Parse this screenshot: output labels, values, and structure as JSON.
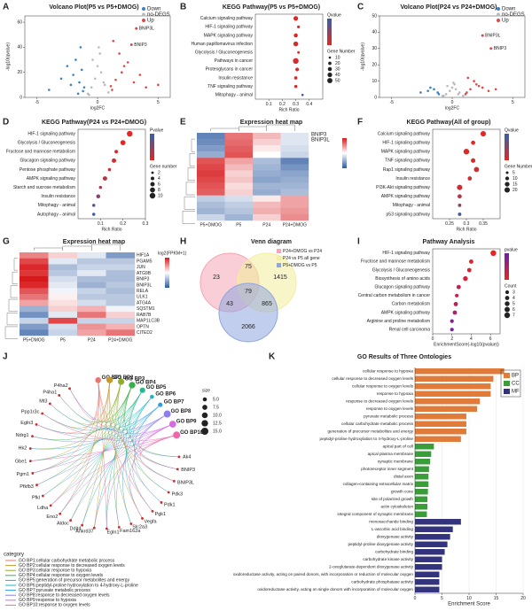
{
  "chart_data": [
    {
      "label": "A",
      "type": "scatter",
      "title": "Volcano Plot(P5 vs P5+DMOG)",
      "xlabel": "log2FC",
      "ylabel": "-log10(qvalue)",
      "xlim": [
        -6,
        6
      ],
      "xticks": [
        -5,
        0,
        5
      ],
      "ylim": [
        0,
        65
      ],
      "yticks": [
        0,
        20,
        40,
        60
      ],
      "series": [
        {
          "name": "Down",
          "color": "#3b7fc4",
          "x": [
            -1.2,
            -1.5,
            -2,
            -2.5,
            -1.1,
            -1.8,
            -3,
            -1.4,
            -2.2,
            -1.3,
            -4,
            -1.6
          ],
          "values": [
            5,
            12,
            18,
            25,
            8,
            30,
            15,
            40,
            10,
            22,
            6,
            3
          ]
        },
        {
          "name": "no-DEGS",
          "color": "#bbbbbb",
          "x": [
            -0.8,
            -0.5,
            -0.2,
            0,
            0.3,
            0.6,
            0.9,
            -0.4,
            0.2,
            0.5,
            -0.7,
            0.1
          ],
          "values": [
            3,
            8,
            15,
            25,
            20,
            10,
            4,
            30,
            35,
            12,
            2,
            40
          ]
        },
        {
          "name": "Up",
          "color": "#e04848",
          "x": [
            1.2,
            1.5,
            2,
            2.5,
            3,
            1.1,
            1.8,
            3.5,
            4,
            2.2,
            1.3,
            5
          ],
          "values": [
            6,
            14,
            20,
            28,
            12,
            9,
            35,
            18,
            8,
            25,
            45,
            10
          ]
        }
      ],
      "annotations": [
        {
          "text": "BNIP3L",
          "x": 3.2,
          "y": 55
        },
        {
          "text": "BNIP3",
          "x": 2.8,
          "y": 42
        }
      ]
    },
    {
      "label": "B",
      "type": "dot",
      "title": "KEGG Pathway(P5 vs P5+DMOG)",
      "xlabel": "Rich Ratio",
      "xlim": [
        0,
        0.5
      ],
      "xticks": [
        0.1,
        0.2,
        0.3,
        0.4
      ],
      "categories": [
        "Calcium signaling pathway",
        "HIF-1 signaling pathway",
        "MAPK signaling pathway",
        "Human papillomavirus infection",
        "Glycolysis / Gluconeogenesis",
        "Pathways in cancer",
        "Proteoglycans in cancer",
        "Insulin resistance",
        "TNF signaling pathway",
        "Mitophagy - animal"
      ],
      "values": [
        0.3,
        0.32,
        0.3,
        0.3,
        0.32,
        0.3,
        0.31,
        0.3,
        0.3,
        0.35
      ],
      "sizes": [
        40,
        15,
        30,
        45,
        12,
        60,
        25,
        20,
        18,
        10
      ],
      "pvalues": [
        0.001,
        0.001,
        0.002,
        0.003,
        0.002,
        0.004,
        0.003,
        0.005,
        0.004,
        0.035
      ],
      "clim": [
        0,
        0.04
      ],
      "colors": [
        "#e8251f",
        "#2d62b0"
      ],
      "colorbar_title": "Qvalue",
      "size_title": "Gene Number",
      "size_ticks": [
        10,
        20,
        30,
        40,
        50
      ]
    },
    {
      "label": "C",
      "type": "scatter",
      "title": "Volcano Plot(P24 vs P24+DMOG)",
      "xlabel": "log2FC",
      "ylabel": "-log10(qvalue)",
      "xlim": [
        -6,
        6
      ],
      "xticks": [
        -5,
        0,
        5
      ],
      "ylim": [
        0,
        50
      ],
      "yticks": [
        0,
        10,
        20,
        30,
        40,
        50
      ],
      "series": [
        {
          "name": "Down",
          "color": "#3b7fc4",
          "x": [
            -1.2,
            -1.5,
            -2,
            -1.1,
            -1.8,
            -2.6
          ],
          "values": [
            3,
            5,
            4,
            2,
            6,
            3
          ]
        },
        {
          "name": "no-DEGS",
          "color": "#bbbbbb",
          "x": [
            -0.8,
            -0.5,
            -0.2,
            0,
            0.3,
            0.6,
            0.9,
            -0.4,
            0.2,
            0.5,
            -0.7,
            0.1
          ],
          "values": [
            1,
            2,
            4,
            6,
            5,
            3,
            1,
            7,
            8,
            2,
            1,
            9
          ]
        },
        {
          "name": "Up",
          "color": "#e04848",
          "x": [
            1.2,
            1.5,
            2,
            2.5,
            3,
            1.1,
            1.8,
            3.6,
            2.2,
            1.3
          ],
          "values": [
            3,
            5,
            8,
            6,
            4,
            2,
            10,
            5,
            7,
            12
          ]
        }
      ],
      "annotations": [
        {
          "text": "BNIP3L",
          "x": 2.5,
          "y": 38
        },
        {
          "text": "BNIP3",
          "x": 3.2,
          "y": 30
        }
      ]
    },
    {
      "label": "D",
      "type": "dot",
      "title": "KEGG Pathway(P24 vs P24+DMOG)",
      "xlabel": "Rich Ratio",
      "xlim": [
        0,
        0.3
      ],
      "xticks": [
        0.1,
        0.2,
        0.3
      ],
      "categories": [
        "HIF-1 signaling pathway",
        "Glycolysis / Gluconeogenesis",
        "Fructose and mannose metabolism",
        "Glucagon signaling pathway",
        "Pentose phosphate pathway",
        "AMPK signaling pathway",
        "Starch and sucrose metabolism",
        "Insulin resistance",
        "Mitophagy - animal",
        "Autophagy - animal"
      ],
      "values": [
        0.23,
        0.2,
        0.17,
        0.16,
        0.14,
        0.12,
        0.1,
        0.09,
        0.07,
        0.07
      ],
      "sizes": [
        10,
        8,
        4,
        6,
        3,
        6,
        3,
        5,
        3,
        3
      ],
      "pvalues": [
        0.001,
        0.002,
        0.004,
        0.005,
        0.008,
        0.01,
        0.015,
        0.02,
        0.03,
        0.035
      ],
      "clim": [
        0,
        0.04
      ],
      "colors": [
        "#e8251f",
        "#2d62b0"
      ],
      "colorbar_title": "Pvalue",
      "size_title": "Gene number",
      "size_ticks": [
        2,
        4,
        6,
        8,
        10
      ]
    },
    {
      "label": "E",
      "type": "heatmap",
      "title": "Expression heat map",
      "columns": [
        "P5+DMOG",
        "P5",
        "P24",
        "P24+DMOG"
      ],
      "values": [
        [
          -1.5,
          1.2,
          0.6,
          -0.3
        ],
        [
          -1.4,
          1.3,
          0.4,
          -0.3
        ],
        [
          -1.2,
          1.4,
          0.2,
          -0.4
        ],
        [
          -1.0,
          1.5,
          0,
          -0.5
        ],
        [
          1.5,
          0.8,
          -0.8,
          -1.5
        ],
        [
          1.6,
          0.6,
          -0.9,
          -1.3
        ],
        [
          1.7,
          0.4,
          -1,
          -1.1
        ],
        [
          1.6,
          0.5,
          -1.1,
          -1.0
        ],
        [
          1.5,
          0.3,
          -0.9,
          -0.9
        ],
        [
          1.4,
          0.4,
          -1,
          -0.8
        ],
        [
          -0.6,
          -0.4,
          0.2,
          0.8
        ],
        [
          -0.8,
          -0.6,
          0.6,
          0.8
        ],
        [
          -0.9,
          -0.7,
          0.7,
          0.9
        ],
        [
          -0.5,
          -0.9,
          0.4,
          1.0
        ]
      ],
      "clim": [
        -2,
        2
      ],
      "colors": [
        "#2c5aa0",
        "#ffffff",
        "#d7191c"
      ],
      "annotations": [
        "BNIP3",
        "BNIP3L"
      ]
    },
    {
      "label": "F",
      "type": "dot",
      "title": "KEGG Pathway(All of group)",
      "xlabel": "Rich Ratio",
      "xlim": [
        0.2,
        0.4
      ],
      "xticks": [
        0.25,
        0.3,
        0.35
      ],
      "categories": [
        "Calcium signaling pathway",
        "HIF-1 signaling pathway",
        "MAPK signaling pathway",
        "TNF signaling pathway",
        "Rap1 signaling pathway",
        "Insulin resistance",
        "PI3K-Akt signaling pathway",
        "AMPK signaling pathway",
        "Mitophagy - animal",
        "p53 signaling pathway"
      ],
      "values": [
        0.35,
        0.32,
        0.3,
        0.32,
        0.33,
        0.31,
        0.28,
        0.28,
        0.28,
        0.28
      ],
      "sizes": [
        20,
        12,
        22,
        14,
        18,
        12,
        20,
        12,
        8,
        8
      ],
      "pvalues": [
        0.001,
        0.002,
        0.002,
        0.003,
        0.004,
        0.005,
        0.006,
        0.01,
        0.02,
        0.035
      ],
      "clim": [
        0,
        0.04
      ],
      "colors": [
        "#e8251f",
        "#2d62b0"
      ],
      "colorbar_title": "Qvalue",
      "size_title": "Gene Number",
      "size_ticks": [
        5,
        10,
        15,
        20
      ]
    },
    {
      "label": "G",
      "type": "heatmap",
      "title": "Expression heat map",
      "columns": [
        "P5+DMOG",
        "P5",
        "P24",
        "P24+DMOG"
      ],
      "rows": [
        "HIF1A",
        "PGAM5",
        "JUN",
        "ATG9B",
        "BNIP3",
        "BNIP3L",
        "RELA",
        "ULK1",
        "ATG4A",
        "SQSTM1",
        "RAB7B",
        "MAP1LC3B",
        "OPTN",
        "CITED2"
      ],
      "values": [
        [
          0.8,
          0.3,
          -0.2,
          -0.9
        ],
        [
          1.2,
          -0.2,
          -0.5,
          -0.5
        ],
        [
          1.4,
          -0.6,
          -0.4,
          -0.4
        ],
        [
          1.3,
          -0.5,
          -0.2,
          -0.6
        ],
        [
          1.5,
          -0.3,
          -0.6,
          -0.6
        ],
        [
          1.4,
          -0.2,
          -0.7,
          -0.5
        ],
        [
          1.1,
          -0.1,
          -0.4,
          -0.6
        ],
        [
          0.9,
          0.1,
          -0.5,
          -0.5
        ],
        [
          0.6,
          0.2,
          -0.3,
          -0.5
        ],
        [
          -0.7,
          0.3,
          0.5,
          -0.1
        ],
        [
          -1.0,
          -0.2,
          0.9,
          0.3
        ],
        [
          -0.4,
          1.2,
          -0.4,
          -0.4
        ],
        [
          -0.9,
          -0.3,
          0.7,
          0.5
        ],
        [
          -1.1,
          -0.4,
          0.6,
          0.9
        ]
      ],
      "clim": [
        -1.5,
        1.5
      ],
      "colors": [
        "#2c5aa0",
        "#ffffff",
        "#d7191c"
      ],
      "colorbar_title": "log2(FPKM+1)"
    },
    {
      "label": "H",
      "type": "venn",
      "title": "Venn diagram",
      "sets": [
        {
          "name": "P24+DMOG vs P24",
          "color": "#f4a6b4"
        },
        {
          "name": "P24 vs P5 all gene",
          "color": "#f3ef9a"
        },
        {
          "name": "P5+DMOG vs P5",
          "color": "#8fa6e0"
        }
      ],
      "values": [
        23,
        75,
        1415,
        79,
        43,
        865,
        2066
      ]
    },
    {
      "label": "I",
      "type": "dot",
      "title": "Pathway Analysis",
      "xlabel": "EnrichmentScore(-log10(pvalue))",
      "xlim": [
        0,
        7
      ],
      "xticks": [
        0,
        2,
        4,
        6
      ],
      "categories": [
        "HIF-1 signaling pathway",
        "Fructose and mannose metabolism",
        "Glycolysis / Gluconeogenesis",
        "Biosynthesis of amino acids",
        "Glucagon signaling pathway",
        "Central carbon metabolism in cancer",
        "Carbon metabolism",
        "AMPK signaling pathway",
        "Arginine and proline metabolism",
        "Renal cell carcinoma"
      ],
      "values": [
        6.3,
        4.0,
        3.8,
        3.4,
        2.7,
        2.5,
        2.4,
        2.3,
        2.0,
        2.0
      ],
      "sizes": [
        7,
        4,
        4,
        5,
        4,
        3,
        4,
        4,
        3,
        3
      ],
      "pvalues": [
        0.0001,
        0.001,
        0.001,
        0.002,
        0.003,
        0.003,
        0.004,
        0.005,
        0.008,
        0.009
      ],
      "clim": [
        0,
        0.01
      ],
      "colors": [
        "#e8251f",
        "#6a1fb0"
      ],
      "colorbar_title": "pvalue",
      "size_title": "Count",
      "size_ticks": [
        3,
        4,
        5,
        6,
        7
      ]
    },
    {
      "label": "J",
      "type": "network",
      "size_title": "size",
      "size_ticks": [
        {
          "value": 5,
          "label": "5.0"
        },
        7.5,
        {
          "value": 10,
          "label": "10.0"
        },
        12.5,
        {
          "value": 15,
          "label": "15.0"
        }
      ],
      "category_title": "category",
      "terms": [
        {
          "id": "GO BP1",
          "legend": "GO BP1:cellular carbohydrate metabolic process",
          "size": 10,
          "color": "#e8766c"
        },
        {
          "id": "GO BP2",
          "legend": "GO BP2:cellular response to decreased oxygen levels",
          "size": 12.5,
          "color": "#c59a2c"
        },
        {
          "id": "GO BP3",
          "legend": "GO BP3:cellular response to hypoxia",
          "size": 12,
          "color": "#8fae2a"
        },
        {
          "id": "GO BP4",
          "legend": "GO BP4:cellular response to oxygen levels",
          "size": 12.5,
          "color": "#35b24a"
        },
        {
          "id": "GO BP5",
          "legend": "GO BP5:generation of precursor metabolites and energy",
          "size": 9,
          "color": "#25b890"
        },
        {
          "id": "GO BP6",
          "legend": "GO BP6:peptidyl-proline hydroxylation to 4-hydroxy-L-proline",
          "size": 5,
          "color": "#1fb5c8"
        },
        {
          "id": "GO BP7",
          "legend": "GO BP7:pyruvate metabolic process",
          "size": 6,
          "color": "#2a9fe3"
        },
        {
          "id": "GO BP8",
          "legend": "GO BP8:response to decreased oxygen levels",
          "size": 15,
          "color": "#8c7ef0"
        },
        {
          "id": "GO BP9",
          "legend": "GO BP9:response to hypoxia",
          "size": 14,
          "color": "#d86ae0"
        },
        {
          "id": "GO BP10",
          "legend": "GO BP10:response to oxygen levels",
          "size": 15,
          "color": "#ee67a8"
        }
      ],
      "genes": [
        "P4ha2",
        "P4ha1",
        "Mt3",
        "Ppp1r3c",
        "Egln3",
        "Ndrg1",
        "Hk2",
        "Gbe1",
        "Pgm1",
        "Pfkfb3",
        "Pfkl",
        "Ldha",
        "Eno2",
        "Aldoc",
        "Ddit4",
        "Ankrd37",
        "Egln1",
        "Fam162a",
        "Slc2a3",
        "Vegfa",
        "Pgk1",
        "Pdk1",
        "Pdk3",
        "BNIP3L",
        "BNIP3",
        "Ak4"
      ]
    },
    {
      "label": "K",
      "type": "hbar",
      "title": "GO Results of Three Ontologies",
      "xlabel": "Enrichment Score",
      "xlim": [
        0,
        20
      ],
      "xticks": [
        0,
        5,
        10,
        15,
        20
      ],
      "groups": [
        {
          "name": "BP",
          "color": "#e07b39",
          "categories": [
            "cellular response to hypoxia",
            "cellular response to decreased oxygen levels",
            "cellular response to oxygen levels",
            "response to hypoxia",
            "response to decreased oxygen levels",
            "response to oxygen levels",
            "pyruvate metabolic process",
            "cellular carbohydrate metabolic process",
            "generation of precursor metabolites and energy",
            "peptidyl-proline hydroxylation to 4-hydroxy-L-proline"
          ],
          "values": [
            16.5,
            14.5,
            14,
            14,
            12,
            11.5,
            9.5,
            9.5,
            9.5,
            8.5
          ]
        },
        {
          "name": "CC",
          "color": "#3a9d3a",
          "categories": [
            "apical part of cell",
            "apical plasma membrane",
            "synaptic membrane",
            "photoreceptor inner segment",
            "distal axon",
            "collagen-containing extracellular matrix",
            "growth cone",
            "site of polarized growth",
            "actin cytoskeleton",
            "integral component of synaptic membrane"
          ],
          "values": [
            3.5,
            3.0,
            2.8,
            2.6,
            2.5,
            2.5,
            2.4,
            2.3,
            2.3,
            2.2
          ]
        },
        {
          "name": "MF",
          "color": "#34347e",
          "categories": [
            "monosaccharide binding",
            "L-ascorbic acid binding",
            "dioxygenase activity",
            "peptidyl-proline dioxygenase activity",
            "carbohydrate binding",
            "carbohydrate kinase activity",
            "2-oxoglutarate-dependent dioxygenase activity",
            "oxidoreductase activity, acting on paired donors, with incorporation or reduction of molecular oxygen",
            "carbohydrate phosphatase activity",
            "oxidoreductase activity, acting on single donors with incorporation of molecular oxygen"
          ],
          "values": [
            8.5,
            7,
            6.5,
            6,
            5.5,
            5,
            5,
            4.5,
            4.5,
            4.5
          ]
        }
      ]
    }
  ]
}
